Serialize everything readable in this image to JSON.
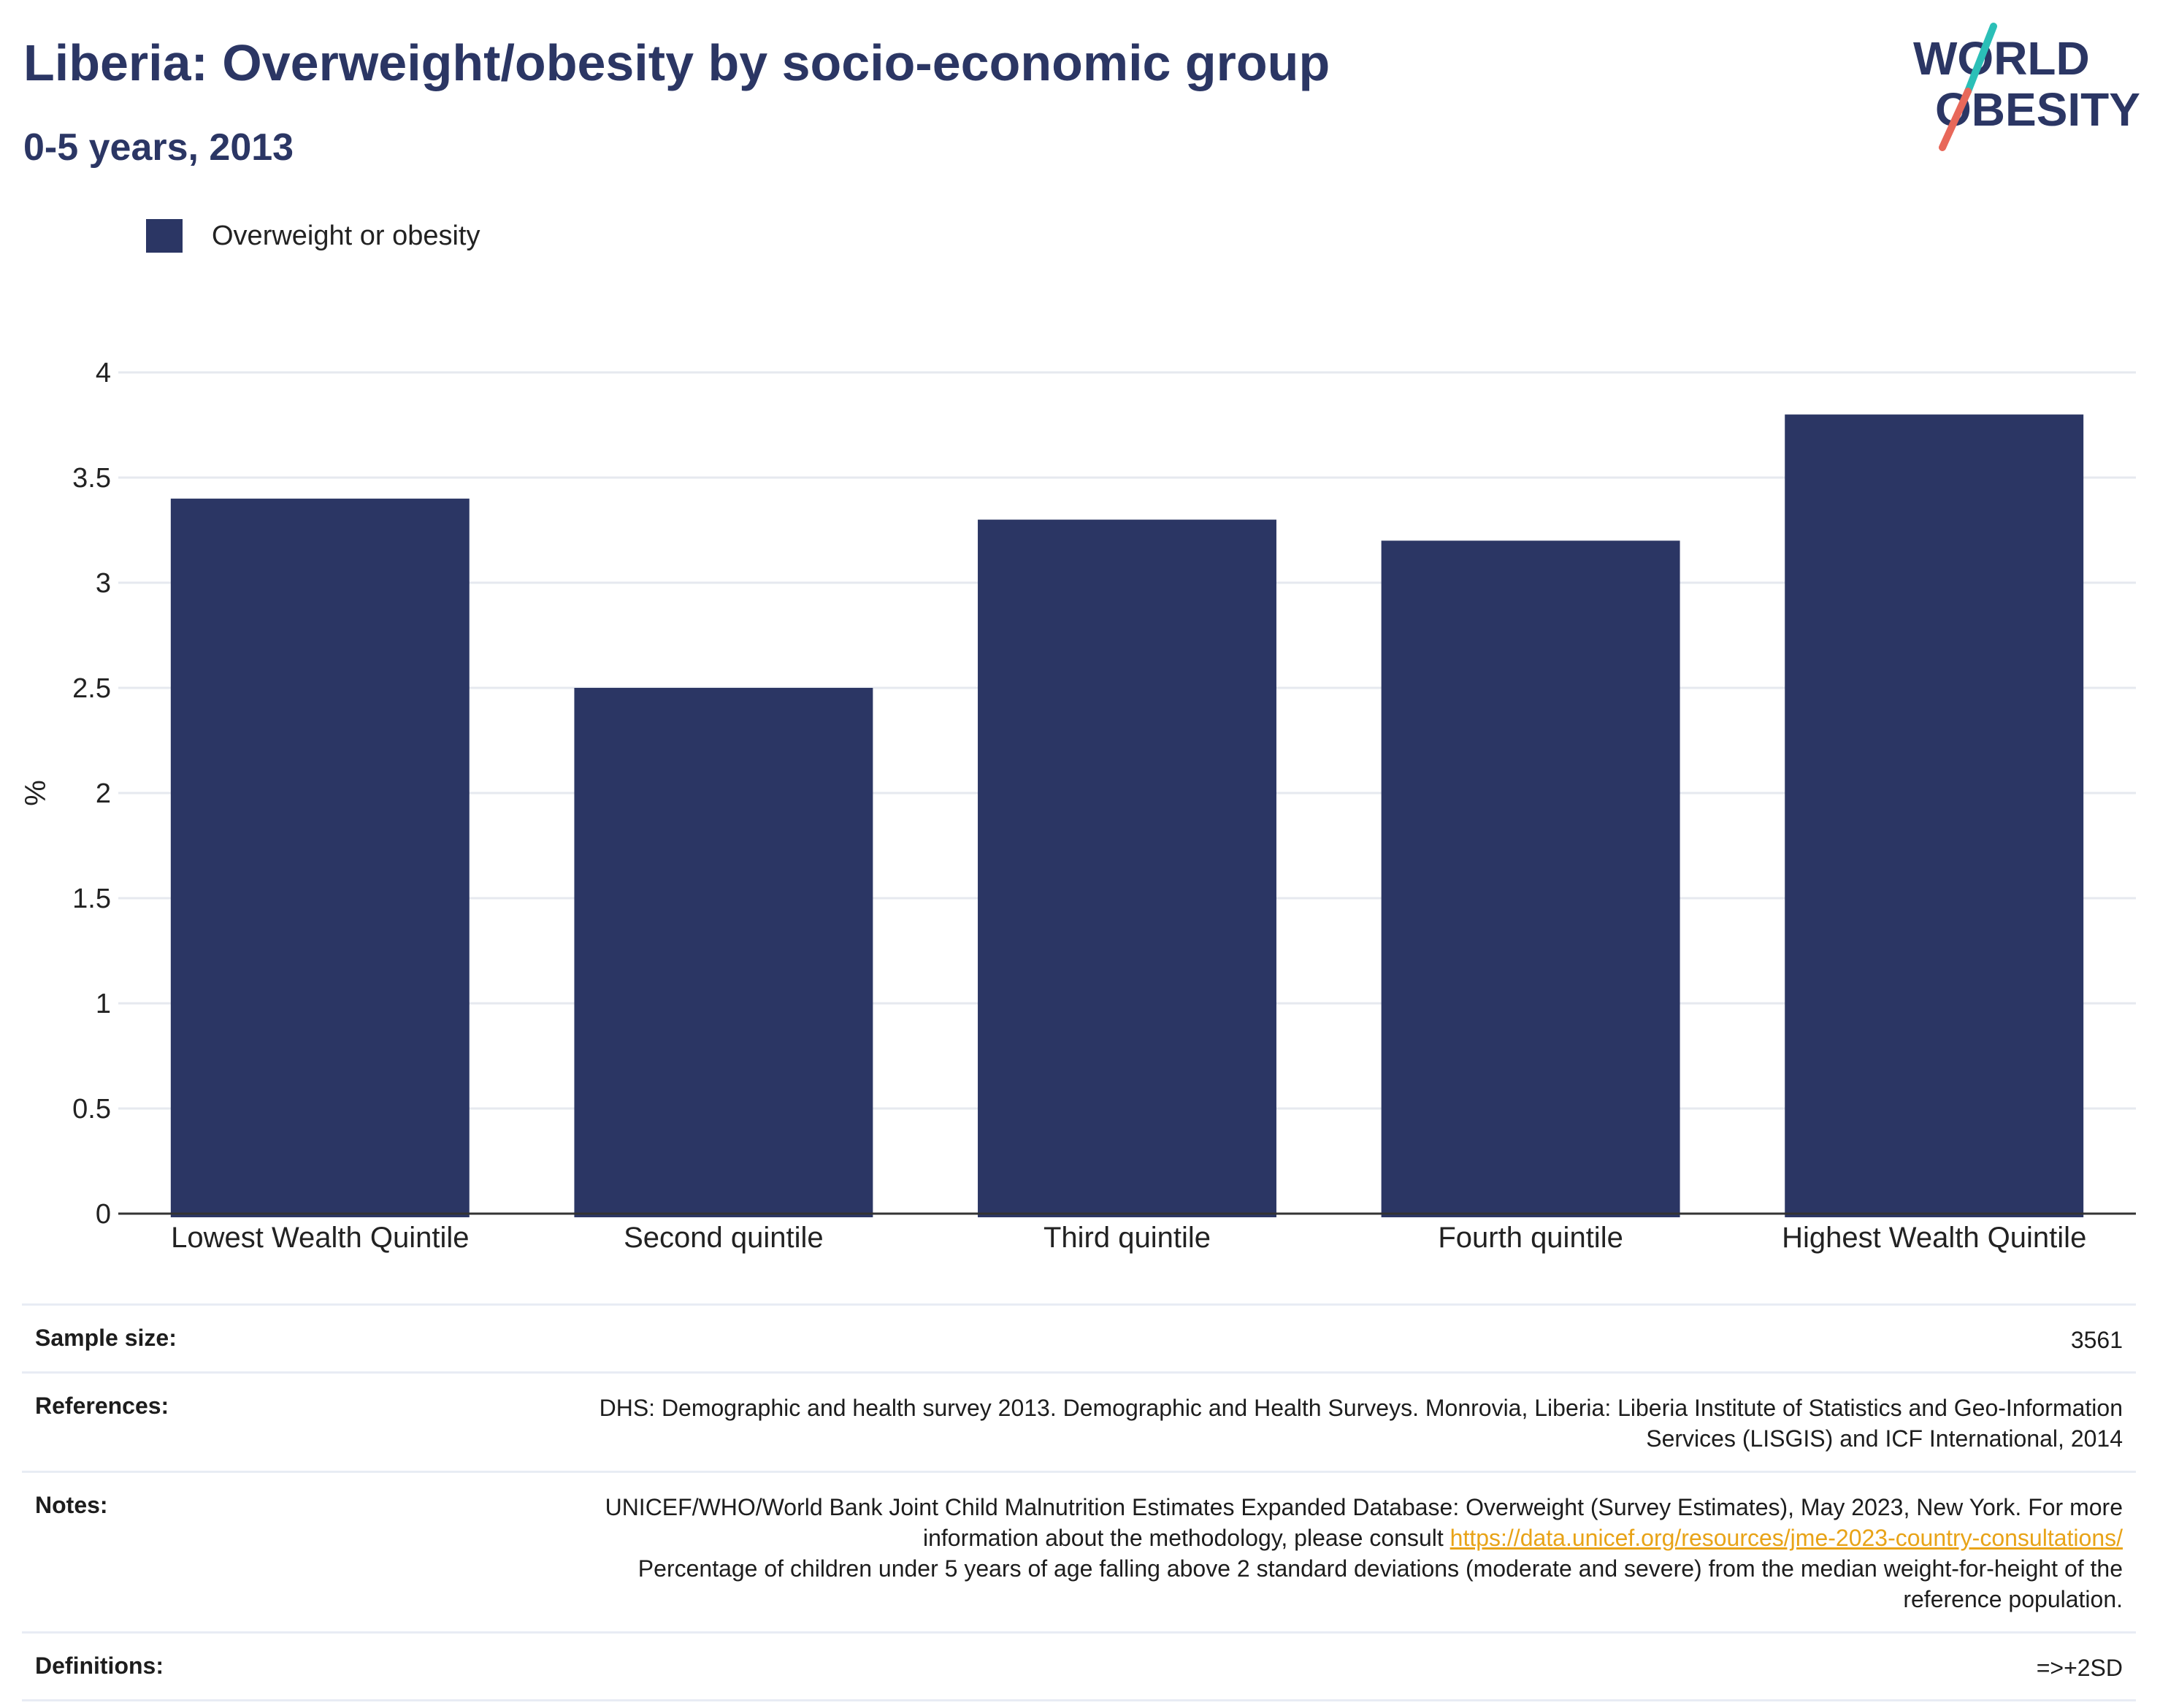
{
  "header": {
    "title": "Liberia: Overweight/obesity by socio-economic group",
    "subtitle": "0-5 years, 2013"
  },
  "logo": {
    "line1": "WORLD",
    "line2": "OBESITY",
    "colors": {
      "text": "#2b3664",
      "slash_top": "#2bbfb7",
      "slash_bottom": "#e8685a"
    }
  },
  "legend": {
    "label": "Overweight or obesity",
    "color": "#2b3664"
  },
  "chart_data": {
    "type": "bar",
    "title": "Liberia: Overweight/obesity by socio-economic group",
    "subtitle": "0-5 years, 2013",
    "categories": [
      "Lowest Wealth Quintile",
      "Second quintile",
      "Third quintile",
      "Fourth quintile",
      "Highest Wealth Quintile"
    ],
    "series": [
      {
        "name": "Overweight or obesity",
        "values": [
          3.4,
          2.5,
          3.3,
          3.2,
          3.8
        ],
        "color": "#2b3664"
      }
    ],
    "xlabel": "",
    "ylabel": "%",
    "ylim": [
      0,
      4
    ],
    "yticks": [
      0,
      0.5,
      1,
      1.5,
      2,
      2.5,
      3,
      3.5,
      4
    ],
    "ytick_labels": [
      "0",
      "0.5",
      "1",
      "1.5",
      "2",
      "2.5",
      "3",
      "3.5",
      "4"
    ],
    "grid": true,
    "legend_position": "top-left"
  },
  "info": {
    "sample_size": {
      "label": "Sample size:",
      "value": "3561"
    },
    "references": {
      "label": "References:",
      "value": "DHS: Demographic and health survey 2013. Demographic and Health Surveys. Monrovia, Liberia: Liberia Institute of Statistics and Geo-Information Services (LISGIS) and ICF International, 2014"
    },
    "notes": {
      "label": "Notes:",
      "text_before": "UNICEF/WHO/World Bank Joint Child Malnutrition Estimates Expanded Database: Overweight (Survey Estimates), May 2023, New York. For more information about the methodology, please consult",
      "link": "https://data.unicef.org/resources/jme-2023-country-consultations/",
      "text_after": "Percentage of children under 5 years of age falling above 2 standard deviations (moderate and severe) from the median weight-for-height of the reference population."
    },
    "definitions": {
      "label": "Definitions:",
      "value": "=>+2SD"
    }
  }
}
